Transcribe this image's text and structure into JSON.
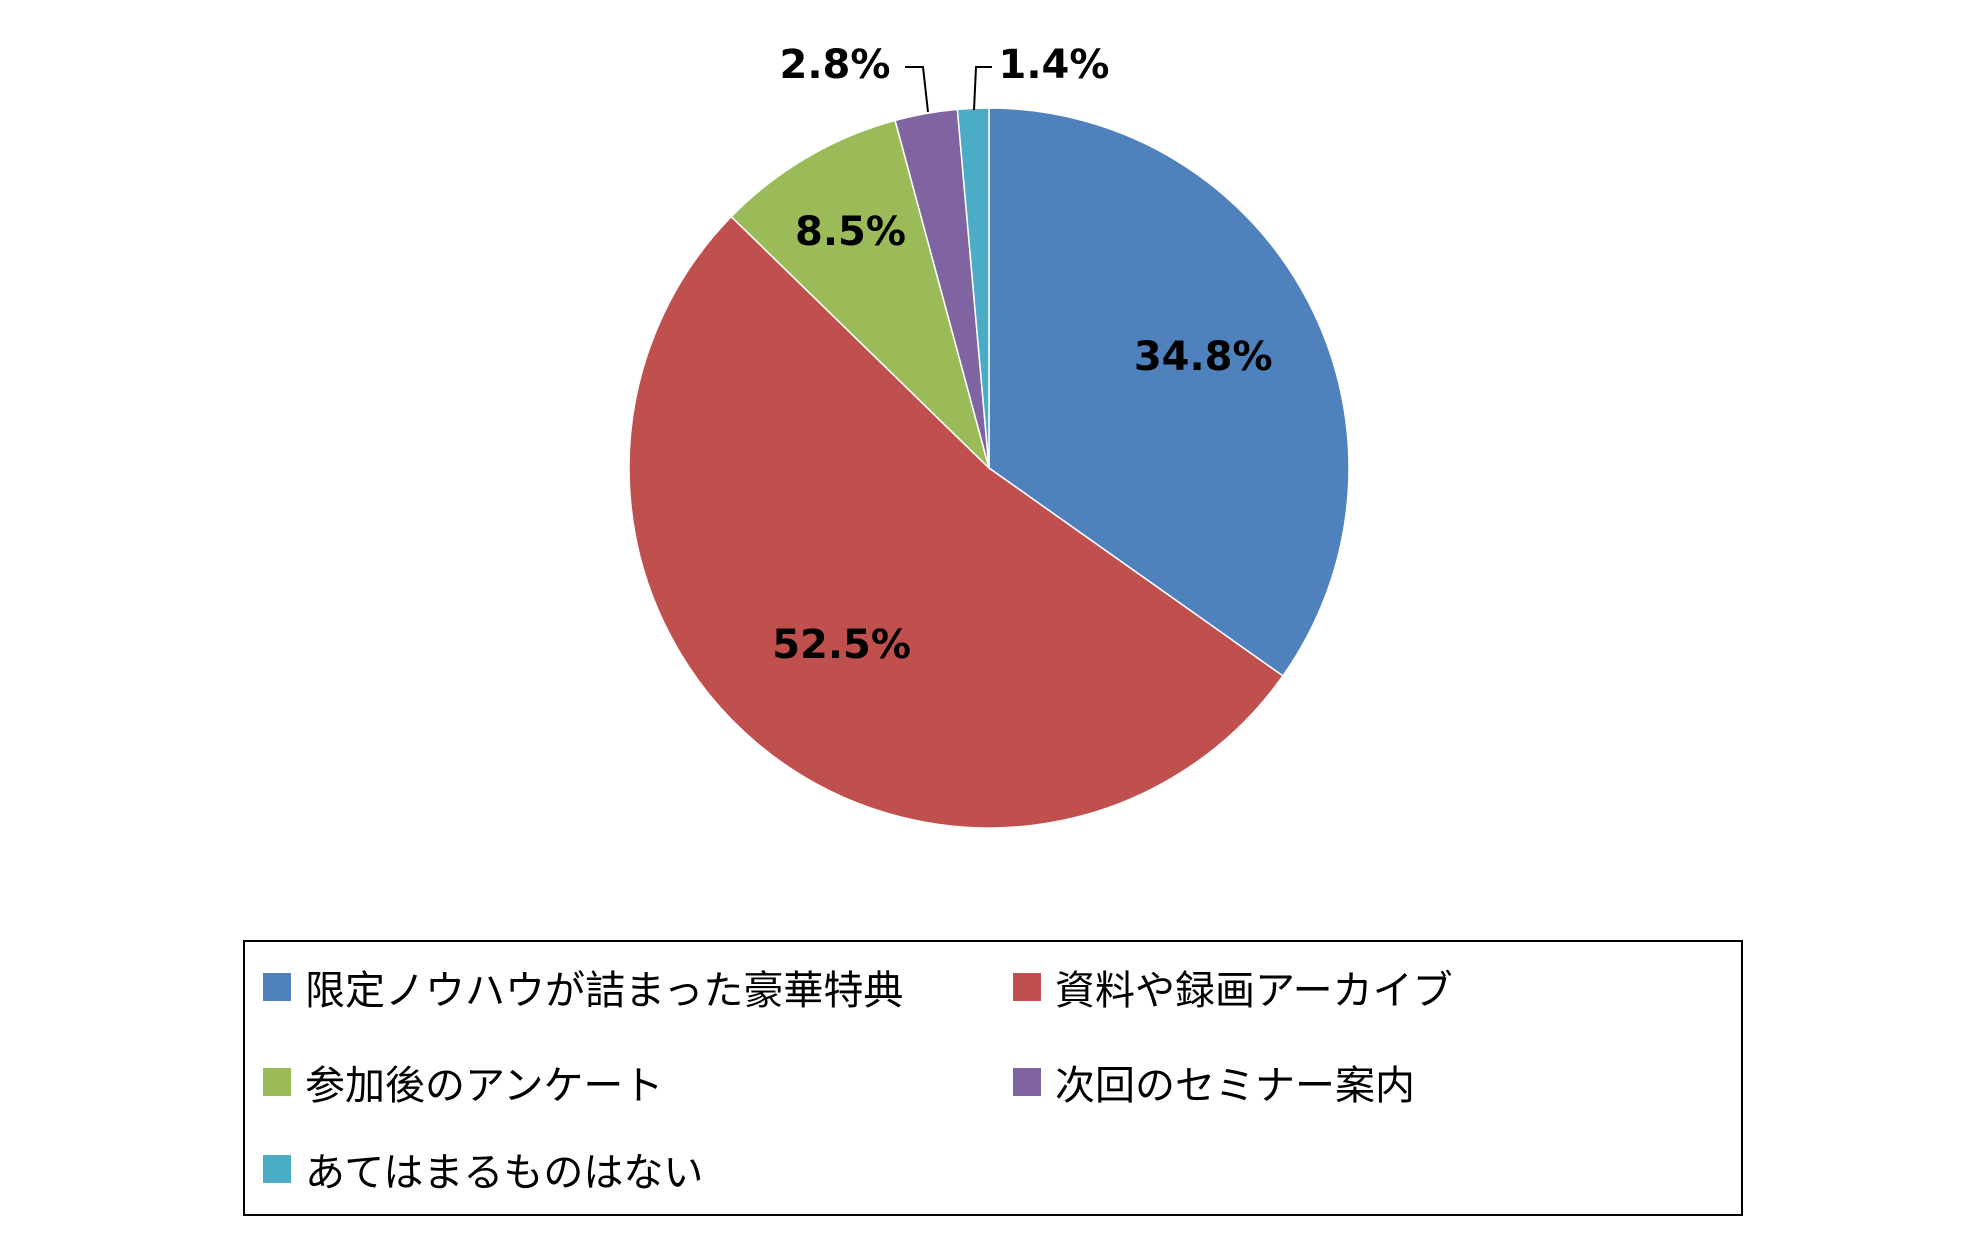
{
  "chart_data": {
    "type": "pie",
    "title": "",
    "start_angle_deg": 0,
    "direction": "clockwise",
    "legend_position": "bottom",
    "slices": [
      {
        "name": "限定ノウハウが詰まった豪華特典",
        "value": 34.8,
        "label": "34.8%",
        "color": "#4F81BD"
      },
      {
        "name": "資料や録画アーカイブ",
        "value": 52.5,
        "label": "52.5%",
        "color": "#C0504D"
      },
      {
        "name": "参加後のアンケート",
        "value": 8.5,
        "label": "8.5%",
        "color": "#9BBB59"
      },
      {
        "name": "次回のセミナー案内",
        "value": 2.8,
        "label": "2.8%",
        "color": "#8064A2"
      },
      {
        "name": "あてはまるものはない",
        "value": 1.4,
        "label": "1.4%",
        "color": "#4BACC6"
      }
    ]
  }
}
